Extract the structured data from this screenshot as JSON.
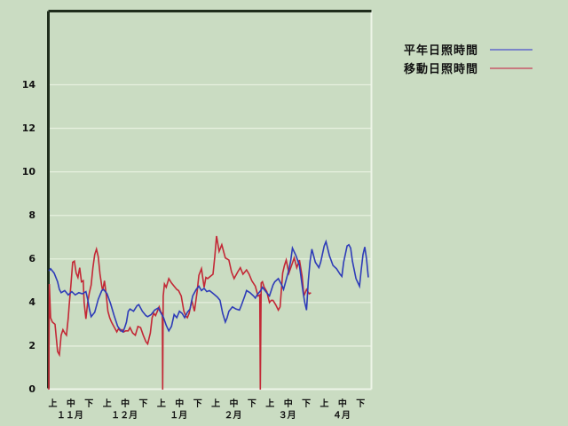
{
  "ui": {
    "background_color": "#cadcc2",
    "frame_dark_color": "#1f2d1c",
    "frame_light_color": "#eef5e8",
    "gridline_color": "#e6f0de",
    "text_color": "#111111"
  },
  "legend": {
    "items": [
      {
        "label": "平年日照時間",
        "swatch_color": "#7b85c8"
      },
      {
        "label": "移動日照時間",
        "swatch_color": "#c8797f"
      }
    ]
  },
  "chart_data": {
    "type": "line",
    "title": "",
    "xlabel": "",
    "ylabel": "",
    "grid": "horizontal",
    "legend_position": "top-right",
    "y_axis": {
      "ticks": [
        0,
        2,
        4,
        6,
        8,
        10,
        12,
        14
      ],
      "ylim": [
        0,
        17.5
      ]
    },
    "x_axis": {
      "months": [
        "１１月",
        "１２月",
        "１月",
        "２月",
        "３月",
        "４月"
      ],
      "periods": [
        "上",
        "中",
        "下"
      ],
      "domain_days": [
        0,
        181
      ]
    },
    "series": [
      {
        "name": "平年日照時間",
        "color": "#2e3cb8",
        "points": [
          [
            0,
            5.45
          ],
          [
            1,
            5.55
          ],
          [
            3,
            5.35
          ],
          [
            5,
            4.95
          ],
          [
            6,
            4.6
          ],
          [
            7,
            4.45
          ],
          [
            9,
            4.55
          ],
          [
            11,
            4.35
          ],
          [
            13,
            4.5
          ],
          [
            15,
            4.35
          ],
          [
            17,
            4.45
          ],
          [
            19,
            4.4
          ],
          [
            21,
            4.5
          ],
          [
            22,
            4.15
          ],
          [
            23,
            3.7
          ],
          [
            24,
            3.35
          ],
          [
            26,
            3.55
          ],
          [
            28,
            4.15
          ],
          [
            30,
            4.55
          ],
          [
            31,
            4.6
          ],
          [
            33,
            4.4
          ],
          [
            35,
            3.95
          ],
          [
            37,
            3.4
          ],
          [
            39,
            2.9
          ],
          [
            41,
            2.7
          ],
          [
            42,
            2.65
          ],
          [
            43,
            2.85
          ],
          [
            44,
            3.1
          ],
          [
            45,
            3.6
          ],
          [
            46,
            3.7
          ],
          [
            48,
            3.6
          ],
          [
            50,
            3.85
          ],
          [
            51,
            3.9
          ],
          [
            53,
            3.6
          ],
          [
            55,
            3.4
          ],
          [
            56,
            3.35
          ],
          [
            58,
            3.45
          ],
          [
            60,
            3.65
          ],
          [
            62,
            3.75
          ],
          [
            63,
            3.6
          ],
          [
            65,
            3.3
          ],
          [
            66.5,
            2.95
          ],
          [
            68,
            2.7
          ],
          [
            69.5,
            2.9
          ],
          [
            71,
            3.45
          ],
          [
            72.5,
            3.3
          ],
          [
            74,
            3.6
          ],
          [
            75.5,
            3.5
          ],
          [
            77,
            3.3
          ],
          [
            78.5,
            3.55
          ],
          [
            80,
            3.7
          ],
          [
            81.5,
            4.3
          ],
          [
            83.5,
            4.6
          ],
          [
            85,
            4.75
          ],
          [
            86.5,
            4.55
          ],
          [
            88,
            4.65
          ],
          [
            89.5,
            4.5
          ],
          [
            91,
            4.55
          ],
          [
            92.5,
            4.45
          ],
          [
            94,
            4.35
          ],
          [
            95.5,
            4.25
          ],
          [
            97,
            4.1
          ],
          [
            98.5,
            3.5
          ],
          [
            100,
            3.1
          ],
          [
            101,
            3.3
          ],
          [
            102,
            3.6
          ],
          [
            104,
            3.8
          ],
          [
            106,
            3.7
          ],
          [
            108,
            3.65
          ],
          [
            109,
            3.85
          ],
          [
            111,
            4.3
          ],
          [
            112,
            4.55
          ],
          [
            114,
            4.45
          ],
          [
            116,
            4.3
          ],
          [
            117,
            4.2
          ],
          [
            118,
            4.35
          ],
          [
            120,
            4.55
          ],
          [
            121,
            4.7
          ],
          [
            123,
            4.5
          ],
          [
            125,
            4.3
          ],
          [
            127,
            4.8
          ],
          [
            128,
            4.95
          ],
          [
            130,
            5.1
          ],
          [
            132,
            4.8
          ],
          [
            133,
            4.6
          ],
          [
            135,
            5.2
          ],
          [
            136,
            5.5
          ],
          [
            137,
            5.9
          ],
          [
            138,
            6.5
          ],
          [
            140,
            6.15
          ],
          [
            142,
            5.7
          ],
          [
            143,
            5.1
          ],
          [
            144,
            4.5
          ],
          [
            145,
            4.0
          ],
          [
            146,
            3.65
          ],
          [
            147,
            5.0
          ],
          [
            148,
            5.9
          ],
          [
            149,
            6.45
          ],
          [
            151,
            5.85
          ],
          [
            153,
            5.6
          ],
          [
            154,
            5.85
          ],
          [
            156,
            6.6
          ],
          [
            157,
            6.8
          ],
          [
            159,
            6.15
          ],
          [
            161,
            5.7
          ],
          [
            163,
            5.55
          ],
          [
            165,
            5.3
          ],
          [
            166,
            5.2
          ],
          [
            167,
            5.85
          ],
          [
            169,
            6.6
          ],
          [
            170,
            6.65
          ],
          [
            171,
            6.5
          ],
          [
            172,
            5.9
          ],
          [
            174,
            5.1
          ],
          [
            176,
            4.75
          ],
          [
            177,
            5.5
          ],
          [
            178,
            6.2
          ],
          [
            179,
            6.55
          ],
          [
            180,
            6.0
          ],
          [
            181,
            5.15
          ]
        ]
      },
      {
        "name": "移動日照時間",
        "color": "#c32836",
        "points": [
          [
            0,
            0
          ],
          [
            0.3,
            4.85
          ],
          [
            1,
            3.3
          ],
          [
            2,
            3.1
          ],
          [
            3.5,
            3.0
          ],
          [
            5,
            1.75
          ],
          [
            6,
            1.6
          ],
          [
            7,
            2.5
          ],
          [
            8,
            2.75
          ],
          [
            9,
            2.6
          ],
          [
            10,
            2.5
          ],
          [
            11,
            3.3
          ],
          [
            11.5,
            3.85
          ],
          [
            12.5,
            4.8
          ],
          [
            13.5,
            5.85
          ],
          [
            14.5,
            5.9
          ],
          [
            15.5,
            5.35
          ],
          [
            16.5,
            5.15
          ],
          [
            17.5,
            5.6
          ],
          [
            18.5,
            4.95
          ],
          [
            19.5,
            5.0
          ],
          [
            20,
            4.0
          ],
          [
            21,
            3.25
          ],
          [
            22,
            4.0
          ],
          [
            23,
            4.45
          ],
          [
            24,
            4.8
          ],
          [
            25,
            5.6
          ],
          [
            26,
            6.2
          ],
          [
            27,
            6.45
          ],
          [
            28,
            6.1
          ],
          [
            29,
            5.3
          ],
          [
            30,
            4.75
          ],
          [
            30.5,
            4.55
          ],
          [
            31.5,
            5.0
          ],
          [
            32.5,
            4.4
          ],
          [
            33.5,
            3.6
          ],
          [
            34.5,
            3.3
          ],
          [
            35.5,
            3.1
          ],
          [
            36.5,
            2.95
          ],
          [
            37.5,
            2.8
          ],
          [
            38.5,
            2.65
          ],
          [
            39.5,
            2.8
          ],
          [
            40.5,
            2.7
          ],
          [
            41.5,
            2.75
          ],
          [
            42.5,
            2.65
          ],
          [
            43.5,
            2.7
          ],
          [
            45,
            2.7
          ],
          [
            46,
            2.85
          ],
          [
            47.5,
            2.6
          ],
          [
            49,
            2.5
          ],
          [
            50.5,
            2.9
          ],
          [
            52,
            2.85
          ],
          [
            53.5,
            2.5
          ],
          [
            55,
            2.2
          ],
          [
            56,
            2.1
          ],
          [
            57.5,
            2.6
          ],
          [
            58.5,
            3.3
          ],
          [
            59.5,
            3.5
          ],
          [
            60.5,
            3.4
          ],
          [
            61.5,
            3.6
          ],
          [
            62.5,
            3.8
          ],
          [
            63.5,
            3.55
          ],
          [
            64.3,
            3.5
          ],
          [
            64.5,
            0
          ],
          [
            64.8,
            4.3
          ],
          [
            65.5,
            4.85
          ],
          [
            66.5,
            4.7
          ],
          [
            68,
            5.1
          ],
          [
            69.5,
            4.9
          ],
          [
            71,
            4.75
          ],
          [
            72.5,
            4.6
          ],
          [
            73.5,
            4.55
          ],
          [
            75,
            4.3
          ],
          [
            76.5,
            3.6
          ],
          [
            77.5,
            3.4
          ],
          [
            78.5,
            3.3
          ],
          [
            79.5,
            3.5
          ],
          [
            81,
            4.1
          ],
          [
            82.5,
            3.6
          ],
          [
            84,
            4.5
          ],
          [
            85,
            5.25
          ],
          [
            86.5,
            5.55
          ],
          [
            88,
            4.7
          ],
          [
            89,
            5.15
          ],
          [
            90,
            5.1
          ],
          [
            91.5,
            5.2
          ],
          [
            93,
            5.3
          ],
          [
            94,
            6.1
          ],
          [
            95,
            7.05
          ],
          [
            96.5,
            6.35
          ],
          [
            98,
            6.65
          ],
          [
            100,
            6.05
          ],
          [
            102,
            5.95
          ],
          [
            103.5,
            5.4
          ],
          [
            105,
            5.1
          ],
          [
            107,
            5.4
          ],
          [
            108.5,
            5.6
          ],
          [
            110,
            5.3
          ],
          [
            112,
            5.5
          ],
          [
            113.5,
            5.3
          ],
          [
            115,
            5.0
          ],
          [
            117,
            4.75
          ],
          [
            118.5,
            4.3
          ],
          [
            119.5,
            4.35
          ],
          [
            119.8,
            0
          ],
          [
            120.3,
            4.9
          ],
          [
            121,
            4.95
          ],
          [
            122,
            4.7
          ],
          [
            123.5,
            4.5
          ],
          [
            125,
            4.0
          ],
          [
            126,
            4.1
          ],
          [
            127,
            4.1
          ],
          [
            128.5,
            3.9
          ],
          [
            130,
            3.65
          ],
          [
            131,
            3.8
          ],
          [
            132.5,
            5.35
          ],
          [
            133.5,
            5.7
          ],
          [
            134.5,
            5.95
          ],
          [
            136,
            5.35
          ],
          [
            137.5,
            5.7
          ],
          [
            139,
            6.05
          ],
          [
            140.5,
            5.6
          ],
          [
            142,
            5.95
          ],
          [
            143.5,
            5.2
          ],
          [
            144.5,
            4.3
          ],
          [
            146,
            4.6
          ],
          [
            147.5,
            4.4
          ],
          [
            148.5,
            4.45
          ]
        ]
      }
    ]
  }
}
